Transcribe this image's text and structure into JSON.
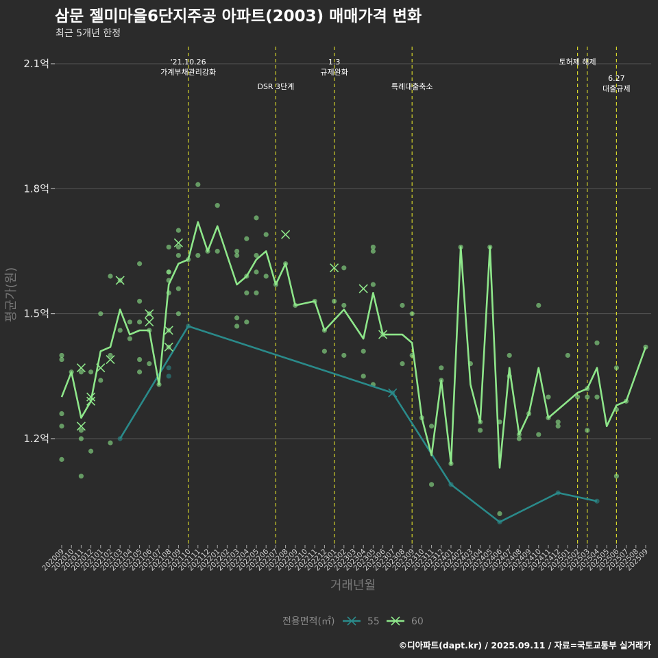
{
  "page": {
    "title": "삼문 젤미마을6단지주공 아파트(2003) 매매가격 변화",
    "subtitle": "최근 5개년 한정",
    "caption": "©디아파트(dapt.kr) / 2025.09.11 / 자료=국토교통부 실거래가"
  },
  "colors": {
    "background": "#2b2b2b",
    "grid": "#555555",
    "series_55": "#2a8a8a",
    "series_60": "#8ee68a",
    "vline": "#d4d42a"
  },
  "chart_data": {
    "type": "line",
    "xlabel": "거래년월",
    "ylabel": "평균가(원)",
    "ylim": [
      0.95,
      2.2
    ],
    "y_ticks": [
      {
        "value": 1.2,
        "label": "1.2억"
      },
      {
        "value": 1.5,
        "label": "1.5억"
      },
      {
        "value": 1.8,
        "label": "1.8억"
      },
      {
        "value": 2.1,
        "label": "2.1억"
      }
    ],
    "categories": [
      "202009",
      "202010",
      "202011",
      "202012",
      "202101",
      "202102",
      "202103",
      "202104",
      "202105",
      "202106",
      "202107",
      "202108",
      "202109",
      "202110",
      "202111",
      "202112",
      "202201",
      "202202",
      "202203",
      "202204",
      "202205",
      "202206",
      "202207",
      "202208",
      "202209",
      "202210",
      "202211",
      "202212",
      "202301",
      "202302",
      "202303",
      "202304",
      "202305",
      "202306",
      "202307",
      "202308",
      "202309",
      "202310",
      "202311",
      "202312",
      "202401",
      "202402",
      "202403",
      "202404",
      "202405",
      "202406",
      "202407",
      "202408",
      "202409",
      "202410",
      "202411",
      "202412",
      "202501",
      "202502",
      "202503",
      "202504",
      "202505",
      "202506",
      "202507",
      "202508",
      "202509"
    ],
    "legend_title": "전용면적(㎡)",
    "series": [
      {
        "name": "55",
        "color": "#2a8a8a",
        "line": [
          [
            "202103",
            1.2
          ],
          [
            "202110",
            1.47
          ],
          [
            "202307",
            1.31
          ],
          [
            "202401",
            1.09
          ],
          [
            "202406",
            1.0
          ],
          [
            "202412",
            1.07
          ],
          [
            "202504",
            1.05
          ]
        ],
        "points": [
          [
            "202103",
            1.2
          ],
          [
            "202108",
            1.35
          ],
          [
            "202108",
            1.37
          ],
          [
            "202110",
            1.47
          ],
          [
            "202307",
            1.31
          ],
          [
            "202401",
            1.09
          ],
          [
            "202406",
            1.0
          ],
          [
            "202412",
            1.07
          ],
          [
            "202504",
            1.05
          ]
        ],
        "x_marks": [
          [
            "202307",
            1.31
          ]
        ]
      },
      {
        "name": "60",
        "color": "#8ee68a",
        "line": [
          [
            "202009",
            1.3
          ],
          [
            "202010",
            1.36
          ],
          [
            "202011",
            1.25
          ],
          [
            "202012",
            1.29
          ],
          [
            "202101",
            1.41
          ],
          [
            "202102",
            1.42
          ],
          [
            "202103",
            1.51
          ],
          [
            "202104",
            1.45
          ],
          [
            "202105",
            1.46
          ],
          [
            "202106",
            1.46
          ],
          [
            "202107",
            1.33
          ],
          [
            "202108",
            1.57
          ],
          [
            "202109",
            1.62
          ],
          [
            "202110",
            1.63
          ],
          [
            "202111",
            1.72
          ],
          [
            "202112",
            1.65
          ],
          [
            "202201",
            1.71
          ],
          [
            "202202",
            1.64
          ],
          [
            "202203",
            1.57
          ],
          [
            "202204",
            1.59
          ],
          [
            "202205",
            1.63
          ],
          [
            "202206",
            1.65
          ],
          [
            "202207",
            1.57
          ],
          [
            "202208",
            1.62
          ],
          [
            "202209",
            1.52
          ],
          [
            "202211",
            1.53
          ],
          [
            "202212",
            1.46
          ],
          [
            "202302",
            1.51
          ],
          [
            "202304",
            1.44
          ],
          [
            "202305",
            1.55
          ],
          [
            "202306",
            1.45
          ],
          [
            "202308",
            1.45
          ],
          [
            "202309",
            1.43
          ],
          [
            "202310",
            1.25
          ],
          [
            "202311",
            1.16
          ],
          [
            "202312",
            1.34
          ],
          [
            "202401",
            1.14
          ],
          [
            "202402",
            1.66
          ],
          [
            "202403",
            1.33
          ],
          [
            "202404",
            1.24
          ],
          [
            "202405",
            1.66
          ],
          [
            "202406",
            1.13
          ],
          [
            "202407",
            1.37
          ],
          [
            "202408",
            1.21
          ],
          [
            "202409",
            1.26
          ],
          [
            "202410",
            1.37
          ],
          [
            "202411",
            1.25
          ],
          [
            "202502",
            1.31
          ],
          [
            "202503",
            1.32
          ],
          [
            "202504",
            1.37
          ],
          [
            "202505",
            1.23
          ],
          [
            "202506",
            1.28
          ],
          [
            "202507",
            1.29
          ],
          [
            "202509",
            1.42
          ]
        ],
        "points": [
          [
            "202009",
            1.23
          ],
          [
            "202009",
            1.26
          ],
          [
            "202009",
            1.4
          ],
          [
            "202009",
            1.39
          ],
          [
            "202009",
            1.15
          ],
          [
            "202010",
            1.36
          ],
          [
            "202011",
            1.22
          ],
          [
            "202011",
            1.36
          ],
          [
            "202011",
            1.11
          ],
          [
            "202011",
            1.2
          ],
          [
            "202012",
            1.17
          ],
          [
            "202012",
            1.36
          ],
          [
            "202101",
            1.5
          ],
          [
            "202101",
            1.34
          ],
          [
            "202102",
            1.19
          ],
          [
            "202102",
            1.4
          ],
          [
            "202102",
            1.59
          ],
          [
            "202103",
            1.46
          ],
          [
            "202103",
            1.58
          ],
          [
            "202104",
            1.48
          ],
          [
            "202104",
            1.44
          ],
          [
            "202105",
            1.53
          ],
          [
            "202105",
            1.62
          ],
          [
            "202105",
            1.48
          ],
          [
            "202105",
            1.39
          ],
          [
            "202105",
            1.36
          ],
          [
            "202106",
            1.5
          ],
          [
            "202106",
            1.38
          ],
          [
            "202106",
            1.46
          ],
          [
            "202107",
            1.33
          ],
          [
            "202108",
            1.6
          ],
          [
            "202108",
            1.6
          ],
          [
            "202108",
            1.58
          ],
          [
            "202108",
            1.55
          ],
          [
            "202108",
            1.46
          ],
          [
            "202108",
            1.42
          ],
          [
            "202108",
            1.66
          ],
          [
            "202109",
            1.7
          ],
          [
            "202109",
            1.66
          ],
          [
            "202109",
            1.64
          ],
          [
            "202109",
            1.56
          ],
          [
            "202109",
            1.5
          ],
          [
            "202110",
            1.63
          ],
          [
            "202111",
            1.81
          ],
          [
            "202111",
            1.64
          ],
          [
            "202112",
            1.65
          ],
          [
            "202201",
            1.76
          ],
          [
            "202201",
            1.65
          ],
          [
            "202203",
            1.64
          ],
          [
            "202203",
            1.49
          ],
          [
            "202203",
            1.47
          ],
          [
            "202203",
            1.65
          ],
          [
            "202204",
            1.55
          ],
          [
            "202204",
            1.48
          ],
          [
            "202204",
            1.59
          ],
          [
            "202204",
            1.68
          ],
          [
            "202205",
            1.73
          ],
          [
            "202205",
            1.55
          ],
          [
            "202205",
            1.6
          ],
          [
            "202205",
            1.64
          ],
          [
            "202206",
            1.59
          ],
          [
            "202206",
            1.69
          ],
          [
            "202207",
            1.57
          ],
          [
            "202208",
            1.62
          ],
          [
            "202209",
            1.52
          ],
          [
            "202211",
            1.53
          ],
          [
            "202212",
            1.41
          ],
          [
            "202212",
            1.46
          ],
          [
            "202301",
            1.53
          ],
          [
            "202302",
            1.4
          ],
          [
            "202302",
            1.52
          ],
          [
            "202302",
            1.61
          ],
          [
            "202304",
            1.41
          ],
          [
            "202304",
            1.35
          ],
          [
            "202305",
            1.33
          ],
          [
            "202305",
            1.57
          ],
          [
            "202305",
            1.65
          ],
          [
            "202305",
            1.66
          ],
          [
            "202306",
            1.45
          ],
          [
            "202308",
            1.52
          ],
          [
            "202308",
            1.38
          ],
          [
            "202309",
            1.4
          ],
          [
            "202309",
            1.5
          ],
          [
            "202310",
            1.25
          ],
          [
            "202311",
            1.23
          ],
          [
            "202311",
            1.09
          ],
          [
            "202312",
            1.34
          ],
          [
            "202312",
            1.37
          ],
          [
            "202401",
            1.14
          ],
          [
            "202402",
            1.66
          ],
          [
            "202403",
            1.38
          ],
          [
            "202404",
            1.24
          ],
          [
            "202404",
            1.22
          ],
          [
            "202405",
            1.66
          ],
          [
            "202406",
            1.02
          ],
          [
            "202406",
            1.24
          ],
          [
            "202407",
            1.4
          ],
          [
            "202407",
            1.35
          ],
          [
            "202408",
            1.2
          ],
          [
            "202408",
            1.21
          ],
          [
            "202409",
            1.26
          ],
          [
            "202410",
            1.52
          ],
          [
            "202410",
            1.21
          ],
          [
            "202411",
            1.25
          ],
          [
            "202411",
            1.3
          ],
          [
            "202412",
            1.24
          ],
          [
            "202412",
            1.23
          ],
          [
            "202501",
            1.4
          ],
          [
            "202502",
            1.3
          ],
          [
            "202503",
            1.22
          ],
          [
            "202503",
            1.32
          ],
          [
            "202503",
            1.3
          ],
          [
            "202504",
            1.3
          ],
          [
            "202504",
            1.43
          ],
          [
            "202506",
            1.11
          ],
          [
            "202506",
            1.37
          ],
          [
            "202506",
            1.27
          ],
          [
            "202507",
            1.29
          ],
          [
            "202509",
            1.42
          ]
        ],
        "x_marks": [
          [
            "202011",
            1.37
          ],
          [
            "202011",
            1.23
          ],
          [
            "202012",
            1.3
          ],
          [
            "202012",
            1.29
          ],
          [
            "202101",
            1.37
          ],
          [
            "202102",
            1.39
          ],
          [
            "202103",
            1.58
          ],
          [
            "202106",
            1.5
          ],
          [
            "202106",
            1.48
          ],
          [
            "202108",
            1.46
          ],
          [
            "202108",
            1.42
          ],
          [
            "202109",
            1.67
          ],
          [
            "202208",
            1.69
          ],
          [
            "202301",
            1.61
          ],
          [
            "202304",
            1.56
          ],
          [
            "202306",
            1.45
          ]
        ]
      }
    ],
    "events": [
      {
        "x": "202110",
        "label_lines": [
          "'21.10.26",
          "가계부채관리강화"
        ],
        "level": 1
      },
      {
        "x": "202207",
        "label_lines": [
          "DSR 3단계"
        ],
        "level": 2
      },
      {
        "x": "202301",
        "label_lines": [
          "1.3",
          "규제완화"
        ],
        "level": 1
      },
      {
        "x": "202309",
        "label_lines": [
          "특례대출축소"
        ],
        "level": 2
      },
      {
        "x": "202502",
        "label_lines": [
          "토허제 해제"
        ],
        "level": 1
      },
      {
        "x": "202503",
        "label_lines": [],
        "level": 1
      },
      {
        "x": "202506",
        "label_lines": [
          "6.27",
          "대출규제"
        ],
        "level": 3
      }
    ]
  }
}
